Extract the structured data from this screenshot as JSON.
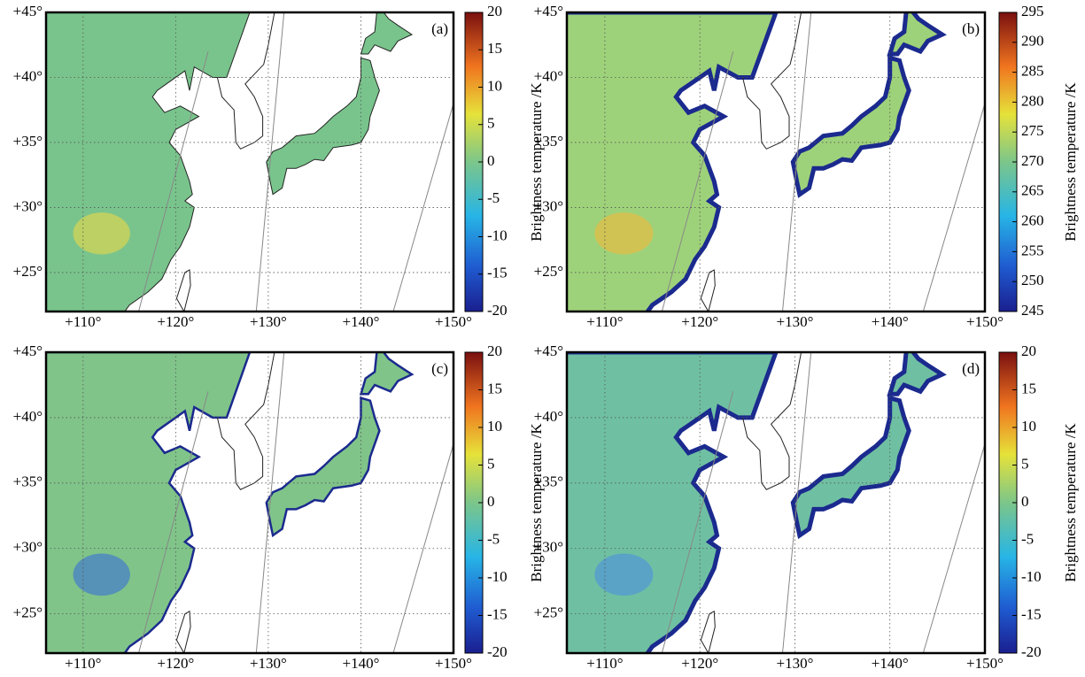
{
  "panels": [
    {
      "label": "(a)",
      "lon_range": [
        106,
        150
      ],
      "lat_range": [
        22,
        45
      ],
      "lon_ticks": [
        {
          "value": 110,
          "label": "+110°"
        },
        {
          "value": 120,
          "label": "+120°"
        },
        {
          "value": 130,
          "label": "+130°"
        },
        {
          "value": 140,
          "label": "+140°"
        },
        {
          "value": 150,
          "label": "+150°"
        }
      ],
      "lat_ticks": [
        {
          "value": 25,
          "label": "+25°"
        },
        {
          "value": 30,
          "label": "+30°"
        },
        {
          "value": 35,
          "label": "+35°"
        },
        {
          "value": 40,
          "label": "+40°"
        },
        {
          "value": 45,
          "label": "+45°"
        }
      ],
      "colorbar": {
        "label": "Brightness temperature /K",
        "range": [
          -20,
          20
        ],
        "ticks": [
          20,
          15,
          10,
          5,
          0,
          -5,
          -10,
          -15,
          -20
        ]
      }
    },
    {
      "label": "(b)",
      "lon_range": [
        106,
        150
      ],
      "lat_range": [
        22,
        45
      ],
      "lon_ticks": [
        {
          "value": 110,
          "label": "+110°"
        },
        {
          "value": 120,
          "label": "+120°"
        },
        {
          "value": 130,
          "label": "+130°"
        },
        {
          "value": 140,
          "label": "+140°"
        },
        {
          "value": 150,
          "label": "+150°"
        }
      ],
      "lat_ticks": [
        {
          "value": 25,
          "label": "+25°"
        },
        {
          "value": 30,
          "label": "+30°"
        },
        {
          "value": 35,
          "label": "+35°"
        },
        {
          "value": 40,
          "label": "+40°"
        },
        {
          "value": 45,
          "label": "+45°"
        }
      ],
      "colorbar": {
        "label": "Brightness temperature /K",
        "range": [
          245,
          295
        ],
        "ticks": [
          295,
          290,
          285,
          280,
          275,
          270,
          265,
          260,
          255,
          250,
          245
        ]
      }
    },
    {
      "label": "(c)",
      "lon_range": [
        106,
        150
      ],
      "lat_range": [
        22,
        45
      ],
      "lon_ticks": [
        {
          "value": 110,
          "label": "+110°"
        },
        {
          "value": 120,
          "label": "+120°"
        },
        {
          "value": 130,
          "label": "+130°"
        },
        {
          "value": 140,
          "label": "+140°"
        },
        {
          "value": 150,
          "label": "+150°"
        }
      ],
      "lat_ticks": [
        {
          "value": 25,
          "label": "+25°"
        },
        {
          "value": 30,
          "label": "+30°"
        },
        {
          "value": 35,
          "label": "+35°"
        },
        {
          "value": 40,
          "label": "+40°"
        },
        {
          "value": 45,
          "label": "+45°"
        }
      ],
      "colorbar": {
        "label": "Brightness temperature /K",
        "range": [
          -20,
          20
        ],
        "ticks": [
          20,
          15,
          10,
          5,
          0,
          -5,
          -10,
          -15,
          -20
        ]
      }
    },
    {
      "label": "(d)",
      "lon_range": [
        106,
        150
      ],
      "lat_range": [
        22,
        45
      ],
      "lon_ticks": [
        {
          "value": 110,
          "label": "+110°"
        },
        {
          "value": 120,
          "label": "+120°"
        },
        {
          "value": 130,
          "label": "+130°"
        },
        {
          "value": 140,
          "label": "+140°"
        },
        {
          "value": 150,
          "label": "+150°"
        }
      ],
      "lat_ticks": [
        {
          "value": 25,
          "label": "+25°"
        },
        {
          "value": 30,
          "label": "+30°"
        },
        {
          "value": 35,
          "label": "+35°"
        },
        {
          "value": 40,
          "label": "+40°"
        },
        {
          "value": 45,
          "label": "+45°"
        }
      ],
      "colorbar": {
        "label": "Brightness temperature /K",
        "range": [
          -20,
          20
        ],
        "ticks": [
          20,
          15,
          10,
          5,
          0,
          -5,
          -10,
          -15,
          -20
        ]
      }
    }
  ]
}
